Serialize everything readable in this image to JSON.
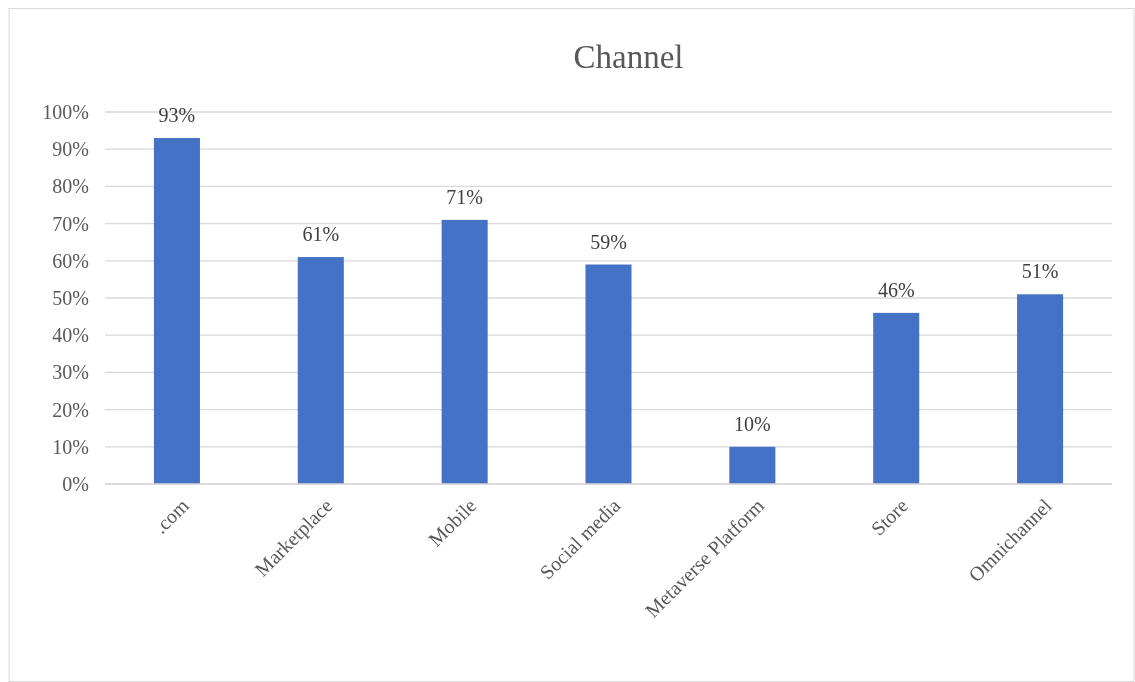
{
  "chart_data": {
    "type": "bar",
    "title": "Channel",
    "categories": [
      ".com",
      "Marketplace",
      "Mobile",
      "Social media",
      "Metaverse Platform",
      "Store",
      "Omnichannel"
    ],
    "values": [
      93,
      61,
      71,
      59,
      10,
      46,
      51
    ],
    "value_labels": [
      "93%",
      "61%",
      "71%",
      "59%",
      "10%",
      "46%",
      "51%"
    ],
    "color": "#4472c4",
    "ylim": [
      0,
      100
    ],
    "yticks": [
      {
        "value": 0,
        "label": "0%"
      },
      {
        "value": 10,
        "label": "10%"
      },
      {
        "value": 20,
        "label": "20%"
      },
      {
        "value": 30,
        "label": "30%"
      },
      {
        "value": 40,
        "label": "40%"
      },
      {
        "value": 50,
        "label": "50%"
      },
      {
        "value": 60,
        "label": "60%"
      },
      {
        "value": 70,
        "label": "70%"
      },
      {
        "value": 80,
        "label": "80%"
      },
      {
        "value": 90,
        "label": "90%"
      },
      {
        "value": 100,
        "label": "100%"
      }
    ],
    "grid": "y"
  }
}
